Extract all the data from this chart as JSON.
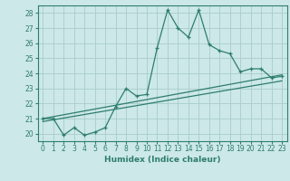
{
  "xlabel": "Humidex (Indice chaleur)",
  "bg_color": "#cce8e8",
  "grid_color": "#aacccc",
  "line_color": "#2e7d6e",
  "xlim": [
    -0.5,
    23.5
  ],
  "ylim": [
    19.5,
    28.5
  ],
  "xticks": [
    0,
    1,
    2,
    3,
    4,
    5,
    6,
    7,
    8,
    9,
    10,
    11,
    12,
    13,
    14,
    15,
    16,
    17,
    18,
    19,
    20,
    21,
    22,
    23
  ],
  "yticks": [
    20,
    21,
    22,
    23,
    24,
    25,
    26,
    27,
    28
  ],
  "curve1_x": [
    0,
    1,
    2,
    3,
    4,
    5,
    6,
    7,
    8,
    9,
    10,
    11,
    12,
    13,
    14,
    15,
    16,
    17,
    18,
    19,
    20,
    21,
    22,
    23
  ],
  "curve1_y": [
    21.0,
    21.0,
    19.9,
    20.4,
    19.9,
    20.1,
    20.4,
    21.8,
    23.0,
    22.5,
    22.6,
    25.7,
    28.2,
    27.0,
    26.4,
    28.2,
    25.9,
    25.5,
    25.3,
    24.1,
    24.3,
    24.3,
    23.7,
    23.8
  ],
  "curve2_x": [
    0,
    23
  ],
  "curve2_y": [
    21.0,
    23.9
  ],
  "curve3_x": [
    0,
    23
  ],
  "curve3_y": [
    20.8,
    23.5
  ]
}
